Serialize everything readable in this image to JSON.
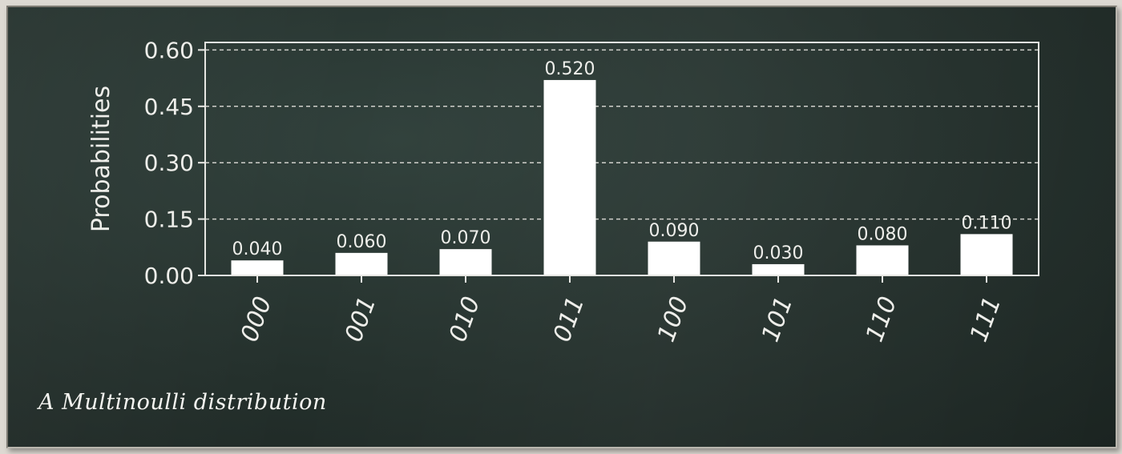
{
  "caption": "A Multinoulli distribution",
  "chart_data": {
    "type": "bar",
    "categories": [
      "000",
      "001",
      "010",
      "011",
      "100",
      "101",
      "110",
      "111"
    ],
    "values": [
      0.04,
      0.06,
      0.07,
      0.52,
      0.09,
      0.03,
      0.08,
      0.11
    ],
    "data_labels": [
      "0.040",
      "0.060",
      "0.070",
      "0.520",
      "0.090",
      "0.030",
      "0.080",
      "0.110"
    ],
    "title": "",
    "xlabel": "",
    "ylabel": "Probabilities",
    "ylim": [
      0,
      0.62
    ],
    "yticks": [
      0.0,
      0.15,
      0.3,
      0.45,
      0.6
    ],
    "ytick_labels": [
      "0.00",
      "0.15",
      "0.30",
      "0.45",
      "0.60"
    ],
    "grid": "horizontal dashed",
    "bar_color": "#ffffff",
    "axis_color": "#e8e8e4"
  }
}
